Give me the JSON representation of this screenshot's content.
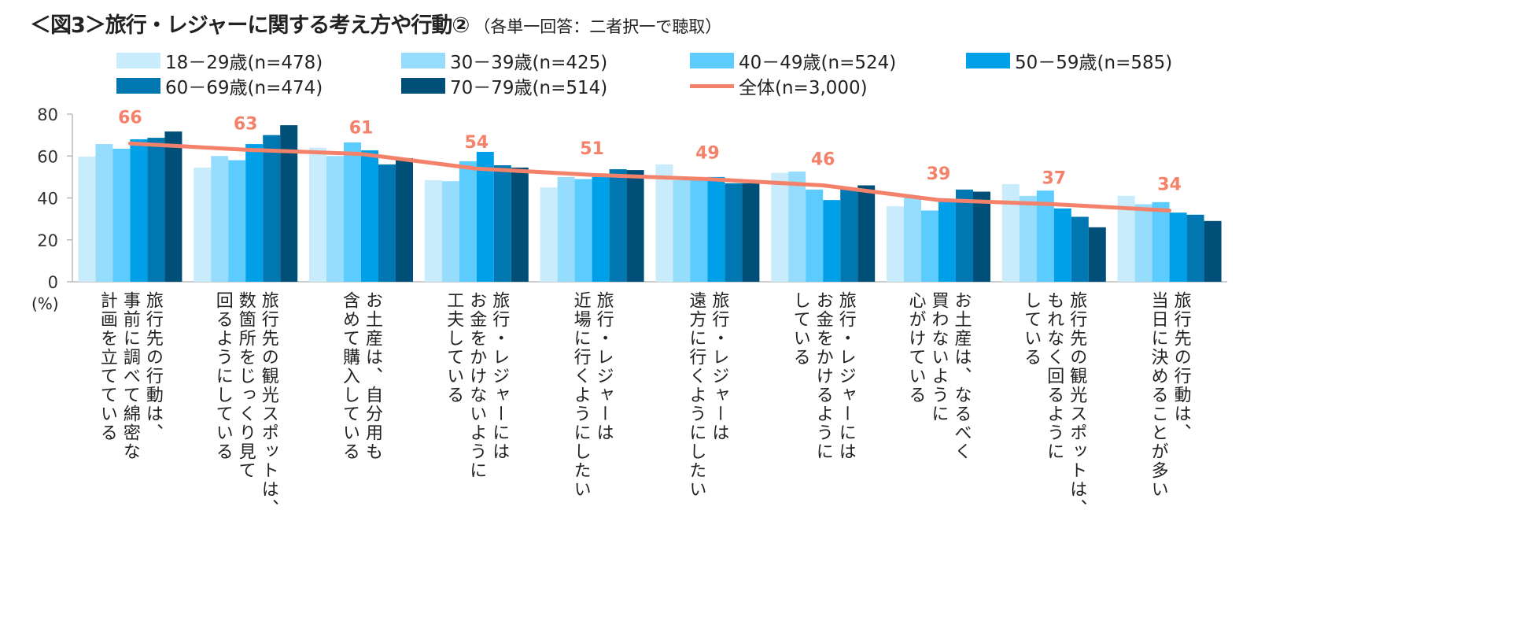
{
  "chart_data": {
    "type": "bar",
    "title": "＜図3＞旅行・レジャーに関する考え方や行動②",
    "subtitle": "（各単一回答：二者択一で聴取）",
    "ylabel": "(%)",
    "ylim": [
      0,
      80
    ],
    "yticks": [
      "0",
      "20",
      "40",
      "60",
      "80"
    ],
    "grid": false,
    "legend_placement": "top",
    "categories": [
      [
        "旅行先の行動は、",
        "事前に調べて綿密な",
        "計画を立てている"
      ],
      [
        "旅行先の観光スポットは、",
        "数箇所をじっくり見て",
        "回るようにしている"
      ],
      [
        "お土産は、自分用も",
        "含めて購入している"
      ],
      [
        "旅行・レジャーには",
        "お金をかけないように",
        "工夫している"
      ],
      [
        "旅行・レジャーは",
        "近場に行くようにしたい"
      ],
      [
        "旅行・レジャーは",
        "遠方に行くようにしたい"
      ],
      [
        "旅行・レジャーには",
        "お金をかけるように",
        "している"
      ],
      [
        "お土産は、なるべく",
        "買わないように",
        "心がけている"
      ],
      [
        "旅行先の観光スポットは、",
        "もれなく回るように",
        "している"
      ],
      [
        "旅行先の行動は、",
        "当日に決めることが多い"
      ]
    ],
    "series": [
      {
        "name": "18－29歳(n=478)",
        "color": "#c9ecfc",
        "values": [
          59.7,
          54.5,
          64,
          48.5,
          45,
          56,
          52,
          36,
          46.6,
          41
        ]
      },
      {
        "name": "30－39歳(n=425)",
        "color": "#96dcfd",
        "values": [
          65.7,
          60,
          60,
          48,
          50,
          48.5,
          52.6,
          40,
          41,
          37
        ]
      },
      {
        "name": "40－49歳(n=524)",
        "color": "#5ccbfe",
        "values": [
          63.5,
          58,
          66.5,
          57.5,
          49,
          49,
          44,
          34,
          43.5,
          38
        ]
      },
      {
        "name": "50－59歳(n=585)",
        "color": "#00a0e9",
        "values": [
          68,
          65.7,
          62.7,
          62,
          50,
          50,
          39,
          39,
          35,
          33
        ]
      },
      {
        "name": "60－69歳(n=474)",
        "color": "#0077b0",
        "values": [
          68.7,
          70,
          56,
          55.6,
          53.7,
          47,
          44,
          44,
          31,
          32
        ]
      },
      {
        "name": "70－79歳(n=514)",
        "color": "#004f78",
        "values": [
          71.7,
          74.7,
          59,
          54.5,
          53.3,
          47,
          46,
          43,
          26,
          29
        ]
      }
    ],
    "line": {
      "name": "全体(n=3,000)",
      "color": "#f4816a",
      "values": [
        66,
        63,
        61,
        54,
        51,
        49,
        46,
        39,
        37,
        34
      ]
    }
  }
}
